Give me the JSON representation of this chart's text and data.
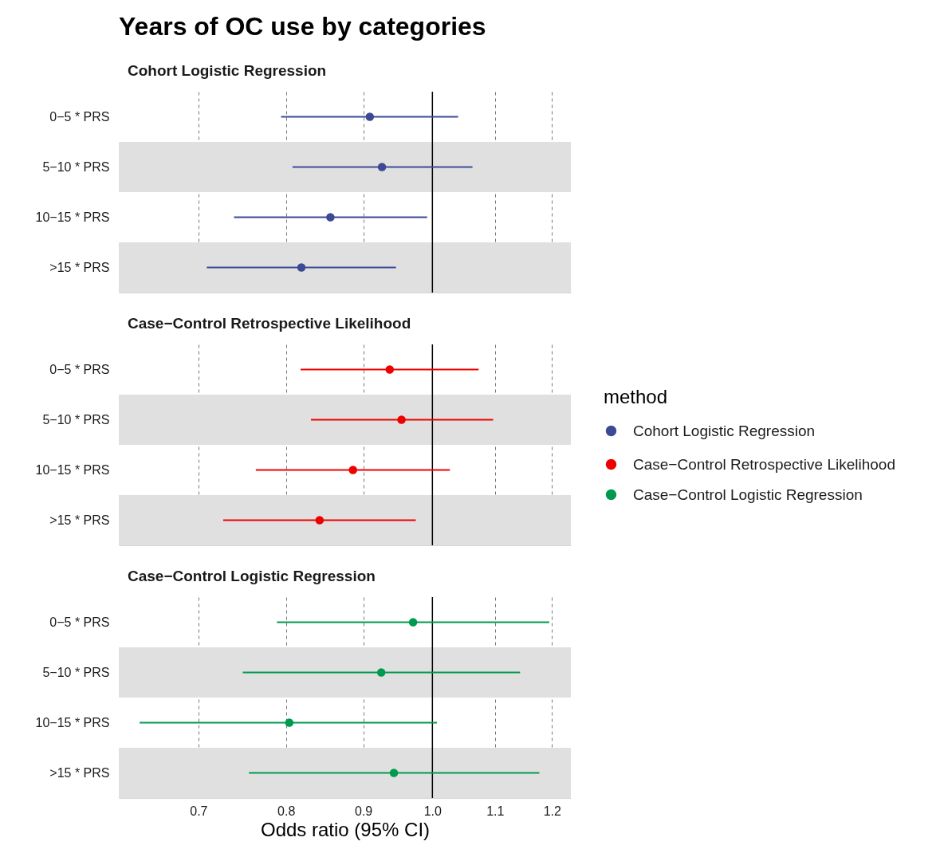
{
  "chart_data": [
    {
      "type": "scatter",
      "title": "Years of OC use by categories",
      "subtitle": "Cohort Logistic Regression",
      "orientation": "horizontal",
      "log": "x",
      "categories": [
        "0−5 * PRS",
        "5−10 * PRS",
        "10−15 * PRS",
        ">15 * PRS"
      ],
      "series": [
        {
          "name": "Cohort Logistic Regression",
          "color": "#3c4a96",
          "values": [
            0.909,
            0.926,
            0.856,
            0.819
          ],
          "errors": [
            [
              0.794,
              1.04
            ],
            [
              0.808,
              1.063
            ],
            [
              0.739,
              0.992
            ],
            [
              0.709,
              0.946
            ]
          ]
        }
      ],
      "xlim": [
        0.62,
        1.235
      ],
      "xticks": [
        0.7,
        0.8,
        0.9,
        1,
        1.1,
        1.2
      ],
      "grid": "x",
      "tick_labels": "y",
      "marker": "circle",
      "legend": "right",
      "legend_title": "method",
      "ref_lines": [
        {
          "axis": "x",
          "value": 1,
          "color": "#000000"
        }
      ],
      "bands": [
        {
          "axis": "y",
          "from": "5−10 * PRS",
          "to": "5−10 * PRS",
          "color": "#e0e0e0"
        },
        {
          "axis": "y",
          "from": ">15 * PRS",
          "to": ">15 * PRS",
          "color": "#e0e0e0"
        }
      ]
    },
    {
      "type": "scatter",
      "subtitle": "Case−Control Retrospective Likelihood",
      "orientation": "horizontal",
      "log": "x",
      "categories": [
        "0−5 * PRS",
        "5−10 * PRS",
        "10−15 * PRS",
        ">15 * PRS"
      ],
      "series": [
        {
          "name": "Case−Control Retrospective Likelihood",
          "color": "#ee0000",
          "values": [
            0.937,
            0.954,
            0.886,
            0.842
          ],
          "errors": [
            [
              0.818,
              1.073
            ],
            [
              0.831,
              1.097
            ],
            [
              0.764,
              1.027
            ],
            [
              0.727,
              0.975
            ]
          ]
        }
      ],
      "xlim": [
        0.62,
        1.235
      ],
      "xticks": [
        0.7,
        0.8,
        0.9,
        1,
        1.1,
        1.2
      ],
      "grid": "x",
      "tick_labels": "y",
      "marker": "circle",
      "legend": "right",
      "ref_lines": [
        {
          "axis": "x",
          "value": 1,
          "color": "#000000"
        }
      ],
      "bands": [
        {
          "axis": "y",
          "from": "5−10 * PRS",
          "to": "5−10 * PRS",
          "color": "#e0e0e0"
        },
        {
          "axis": "y",
          "from": ">15 * PRS",
          "to": ">15 * PRS",
          "color": "#e0e0e0"
        }
      ]
    },
    {
      "type": "scatter",
      "subtitle": "Case−Control Logistic Regression",
      "orientation": "horizontal",
      "log": "x",
      "xlabel": "Odds ratio (95% CI)",
      "categories": [
        "0−5 * PRS",
        "5−10 * PRS",
        "10−15 * PRS",
        ">15 * PRS"
      ],
      "series": [
        {
          "name": "Case−Control Logistic Regression",
          "color": "#009a4e",
          "values": [
            0.971,
            0.925,
            0.804,
            0.943
          ],
          "errors": [
            [
              0.789,
              1.195
            ],
            [
              0.749,
              1.143
            ],
            [
              0.64,
              1.007
            ],
            [
              0.756,
              1.177
            ]
          ]
        }
      ],
      "xlim": [
        0.62,
        1.235
      ],
      "xticks": [
        0.7,
        0.8,
        0.9,
        {
          "value": 1,
          "label": "1.0"
        },
        1.1,
        1.2
      ],
      "grid": "x",
      "marker": "circle",
      "legend": "right",
      "ref_lines": [
        {
          "axis": "x",
          "value": 1,
          "color": "#000000"
        }
      ],
      "bands": [
        {
          "axis": "y",
          "from": "5−10 * PRS",
          "to": "5−10 * PRS",
          "color": "#e0e0e0"
        },
        {
          "axis": "y",
          "from": ">15 * PRS",
          "to": ">15 * PRS",
          "color": "#e0e0e0"
        }
      ]
    }
  ]
}
